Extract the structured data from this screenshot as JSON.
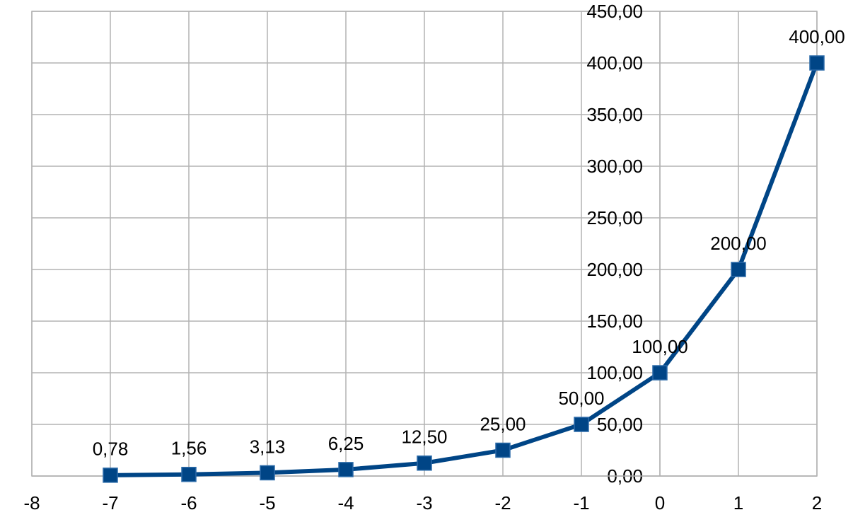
{
  "chart_data": {
    "type": "line",
    "x": [
      -7,
      -6,
      -5,
      -4,
      -3,
      -2,
      -1,
      0,
      1,
      2
    ],
    "series": [
      {
        "color": "#004586",
        "values": [
          0.78,
          1.56,
          3.13,
          6.25,
          12.5,
          25,
          50,
          100,
          200,
          400
        ],
        "value_labels": [
          "0,78",
          "1,56",
          "3,13",
          "6,25",
          "12,50",
          "25,00",
          "50,00",
          "100,00",
          "200,00",
          "400,00"
        ]
      }
    ],
    "xlim": [
      -8,
      2
    ],
    "ylim": [
      0,
      450
    ],
    "xticks": [
      -8,
      -7,
      -6,
      -5,
      -4,
      -3,
      -2,
      -1,
      0,
      1,
      2
    ],
    "yticks": [
      {
        "value": 0,
        "label": "0,00"
      },
      {
        "value": 50,
        "label": "50,00"
      },
      {
        "value": 100,
        "label": "100,00"
      },
      {
        "value": 150,
        "label": "150,00"
      },
      {
        "value": 200,
        "label": "200,00"
      },
      {
        "value": 250,
        "label": "250,00"
      },
      {
        "value": 300,
        "label": "300,00"
      },
      {
        "value": 350,
        "label": "350,00"
      },
      {
        "value": 400,
        "label": "400,00"
      },
      {
        "value": 450,
        "label": "450,00"
      }
    ],
    "grid": true
  }
}
